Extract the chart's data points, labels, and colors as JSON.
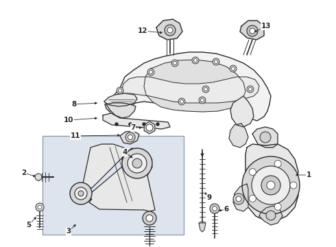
{
  "background_color": "#ffffff",
  "fig_width": 4.9,
  "fig_height": 3.6,
  "dpi": 100,
  "line_color": "#2a2a2a",
  "label_fontsize": 7.0,
  "box_bg": "#dde4ee",
  "box_edge": "#8899aa"
}
